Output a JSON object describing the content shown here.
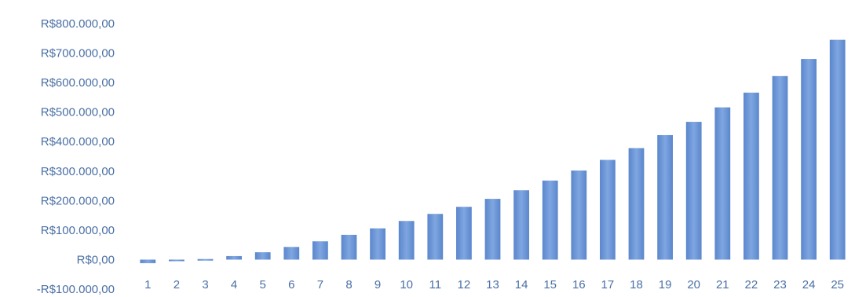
{
  "chart_data": {
    "type": "bar",
    "title": "",
    "xlabel": "",
    "ylabel": "",
    "categories": [
      "1",
      "2",
      "3",
      "4",
      "5",
      "6",
      "7",
      "8",
      "9",
      "10",
      "11",
      "12",
      "13",
      "14",
      "15",
      "16",
      "17",
      "18",
      "19",
      "20",
      "21",
      "22",
      "23",
      "24",
      "25"
    ],
    "values": [
      -12000,
      -5000,
      2000,
      12000,
      25000,
      43000,
      62000,
      84000,
      106000,
      131000,
      155000,
      179000,
      206000,
      235000,
      268000,
      302000,
      338000,
      378000,
      422000,
      467000,
      516000,
      566000,
      622000,
      680000,
      745000
    ],
    "ylim": [
      -100000,
      800000
    ],
    "yticks": [
      800000,
      700000,
      600000,
      500000,
      400000,
      300000,
      200000,
      100000,
      0,
      -100000
    ],
    "ytick_labels": [
      "R$800.000,00",
      "R$700.000,00",
      "R$600.000,00",
      "R$500.000,00",
      "R$400.000,00",
      "R$300.000,00",
      "R$200.000,00",
      "R$100.000,00",
      "R$0,00",
      "-R$100.000,00"
    ],
    "grid": false,
    "legend": "none",
    "bar_color": "#6f9ad8"
  }
}
